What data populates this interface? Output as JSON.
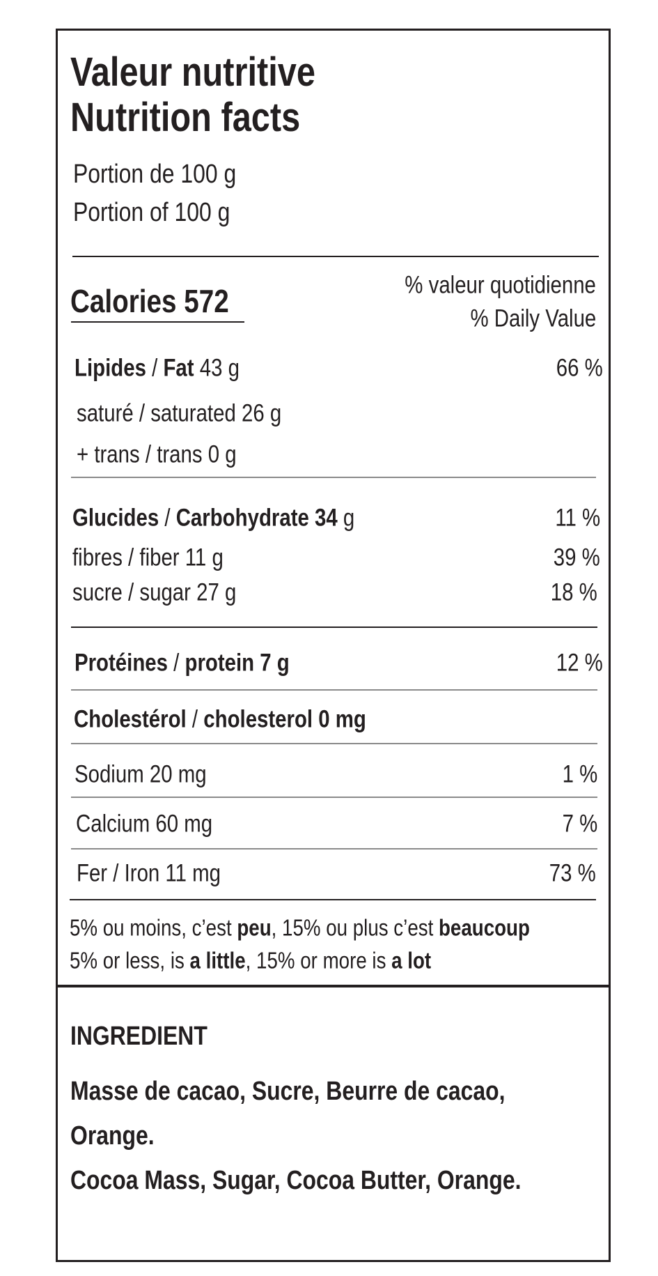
{
  "header": {
    "title_fr": "Valeur nutritive",
    "title_en": "Nutrition facts",
    "portion_fr": "Portion de 100 g",
    "portion_en": "Portion of 100 g"
  },
  "calories": {
    "label": "Calories 572",
    "dv_fr": "% valeur quotidienne",
    "dv_en": "% Daily Value"
  },
  "nutrients": {
    "fat": {
      "bold": "Lipides",
      "sep": " / ",
      "bold2": "Fat",
      "amount": " 43 g",
      "dv": "66 %"
    },
    "saturated": {
      "label": "saturé / saturated 26 g"
    },
    "trans": {
      "label": "+ trans / trans 0 g"
    },
    "carb": {
      "bold": "Glucides",
      "sep": " / ",
      "bold2": "Carbohydrate 34",
      "amount": " g",
      "dv": "11 %"
    },
    "fiber": {
      "label": "fibres / fiber 11 g",
      "dv": "39 %"
    },
    "sugar": {
      "label": "sucre / sugar 27 g",
      "dv": "18 %"
    },
    "protein": {
      "bold": "Protéines",
      "sep": " / ",
      "bold2": "protein 7 g",
      "dv": "12 %"
    },
    "cholesterol": {
      "bold": "Cholestérol",
      "sep": " / ",
      "bold2": "cholesterol 0 mg"
    },
    "sodium": {
      "label": "Sodium 20 mg",
      "dv": "1 %"
    },
    "calcium": {
      "label": "Calcium 60 mg",
      "dv": "7 %"
    },
    "iron": {
      "label": "Fer / Iron 11 mg",
      "dv": "73 %"
    }
  },
  "footnote": {
    "fr": [
      "5% ou moins, c’est ",
      "peu",
      ", 15% ou plus c’est ",
      "beaucoup"
    ],
    "en": [
      "5% or less, is ",
      "a little",
      ", 15% or more is ",
      "a lot"
    ]
  },
  "ingredients": {
    "heading": "INGREDIENT",
    "fr_line1": "Masse de cacao, Sucre, Beurre de cacao,",
    "fr_line2": "Orange.",
    "en": "Cocoa Mass, Sugar, Cocoa Butter, Orange."
  }
}
